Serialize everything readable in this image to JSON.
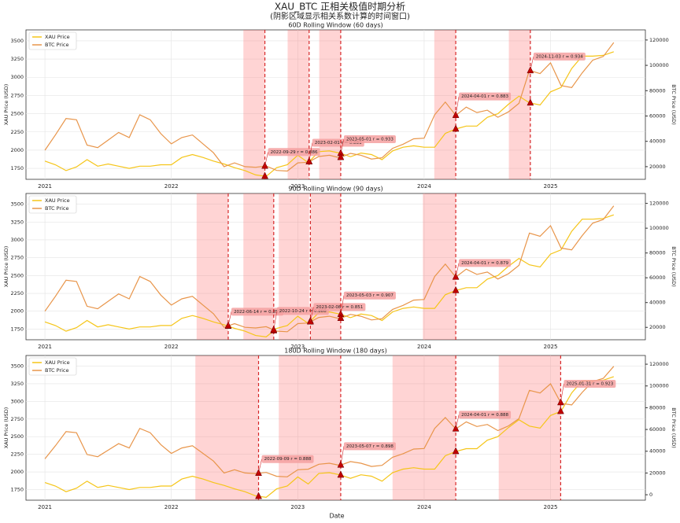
{
  "chart_data": {
    "type": "line",
    "title": "XAU_BTC 正相关极值时期分析",
    "subtitle": "(阴影区域显示相关系数计算的时间窗口)",
    "xlabel": "Date",
    "ylabel": "XAU Price (USD)",
    "y2label": "BTC Price (USD)",
    "xlim": [
      2020.85,
      2025.75
    ],
    "xticks": [
      2021,
      2022,
      2023,
      2024,
      2025
    ],
    "x": [
      2021.0,
      2021.083,
      2021.167,
      2021.25,
      2021.333,
      2021.417,
      2021.5,
      2021.583,
      2021.667,
      2021.75,
      2021.833,
      2021.917,
      2022.0,
      2022.083,
      2022.167,
      2022.25,
      2022.333,
      2022.417,
      2022.5,
      2022.583,
      2022.667,
      2022.75,
      2022.833,
      2022.917,
      2023.0,
      2023.083,
      2023.167,
      2023.25,
      2023.333,
      2023.417,
      2023.5,
      2023.583,
      2023.667,
      2023.75,
      2023.833,
      2023.917,
      2024.0,
      2024.083,
      2024.167,
      2024.25,
      2024.333,
      2024.417,
      2024.5,
      2024.583,
      2024.667,
      2024.75,
      2024.833,
      2024.917,
      2025.0,
      2025.083,
      2025.167,
      2025.25,
      2025.333,
      2025.417,
      2025.5
    ],
    "series": [
      {
        "name": "XAU Price",
        "color": "#f5c518",
        "axis": "y",
        "values": [
          1850,
          1800,
          1720,
          1770,
          1870,
          1780,
          1810,
          1780,
          1750,
          1780,
          1780,
          1800,
          1800,
          1900,
          1940,
          1900,
          1850,
          1810,
          1760,
          1720,
          1660,
          1640,
          1760,
          1800,
          1930,
          1830,
          1980,
          1990,
          1960,
          1910,
          1960,
          1940,
          1870,
          1990,
          2040,
          2060,
          2040,
          2040,
          2230,
          2290,
          2330,
          2330,
          2450,
          2500,
          2630,
          2740,
          2650,
          2620,
          2800,
          2860,
          3120,
          3290,
          3290,
          3300,
          3350
        ]
      },
      {
        "name": "BTC Price",
        "color": "#e8954a",
        "axis": "y2",
        "values": [
          33000,
          45000,
          58000,
          57000,
          37000,
          35000,
          41000,
          47000,
          43000,
          61000,
          57000,
          46000,
          38000,
          43000,
          45000,
          38000,
          31000,
          20000,
          23000,
          20000,
          19500,
          20500,
          17000,
          16500,
          23000,
          23500,
          28000,
          29000,
          27000,
          30500,
          29000,
          26000,
          27000,
          34500,
          37700,
          42000,
          42500,
          61000,
          71000,
          60500,
          67000,
          62700,
          64600,
          59000,
          63300,
          70000,
          96000,
          93500,
          102000,
          84000,
          82500,
          94000,
          104000,
          107000,
          118000
        ]
      }
    ],
    "panels": [
      {
        "title": "60D Rolling Window (60 days)",
        "ylim": [
          1600,
          3650
        ],
        "yticks": [
          1750,
          2000,
          2250,
          2500,
          2750,
          3000,
          3250,
          3500
        ],
        "y2lim": [
          10000,
          128000
        ],
        "y2ticks": [
          20000,
          40000,
          60000,
          80000,
          100000,
          120000
        ],
        "regions": [
          [
            2022.57,
            2022.74
          ],
          [
            2022.92,
            2023.09
          ],
          [
            2023.17,
            2023.34
          ],
          [
            2024.08,
            2024.25
          ],
          [
            2024.67,
            2024.84
          ]
        ],
        "annotations": [
          {
            "x": 2022.74,
            "label": "2022-09-29 r = 0.886"
          },
          {
            "x": 2023.09,
            "label": "2023-02-01 r = 0.881"
          },
          {
            "x": 2023.34,
            "label": "2023-05-01 r = 0.933"
          },
          {
            "x": 2024.25,
            "label": "2024-04-01 r = 0.883"
          },
          {
            "x": 2024.84,
            "label": "2024-11-03 r = 0.934"
          }
        ]
      },
      {
        "title": "90D Rolling Window (90 days)",
        "ylim": [
          1600,
          3650
        ],
        "yticks": [
          1750,
          2000,
          2250,
          2500,
          2750,
          3000,
          3250,
          3500
        ],
        "y2lim": [
          10000,
          128000
        ],
        "y2ticks": [
          20000,
          40000,
          60000,
          80000,
          100000,
          120000
        ],
        "regions": [
          [
            2022.2,
            2022.45
          ],
          [
            2022.57,
            2022.81
          ],
          [
            2022.85,
            2023.09
          ],
          [
            2023.1,
            2023.34
          ],
          [
            2023.99,
            2024.25
          ]
        ],
        "annotations": [
          {
            "x": 2022.45,
            "label": "2022-06-14 r = 0.853"
          },
          {
            "x": 2022.81,
            "label": "2022-10-24 r = 0.888"
          },
          {
            "x": 2023.1,
            "label": "2023-02-08 r = 0.851"
          },
          {
            "x": 2023.34,
            "label": "2023-05-03 r = 0.907"
          },
          {
            "x": 2024.25,
            "label": "2024-04-01 r = 0.879"
          }
        ]
      },
      {
        "title": "180D Rolling Window (180 days)",
        "ylim": [
          1600,
          3650
        ],
        "yticks": [
          1750,
          2000,
          2250,
          2500,
          2750,
          3000,
          3250,
          3500
        ],
        "y2lim": [
          -5000,
          128000
        ],
        "y2ticks": [
          0,
          20000,
          40000,
          60000,
          80000,
          100000,
          120000
        ],
        "regions": [
          [
            2022.19,
            2022.69
          ],
          [
            2022.85,
            2023.34
          ],
          [
            2023.75,
            2024.25
          ],
          [
            2024.59,
            2025.08
          ]
        ],
        "annotations": [
          {
            "x": 2022.69,
            "label": "2022-09-09 r = 0.888"
          },
          {
            "x": 2023.34,
            "label": "2023-05-07 r = 0.898"
          },
          {
            "x": 2024.25,
            "label": "2024-04-01 r = 0.888"
          },
          {
            "x": 2025.08,
            "label": "2025-01-31 r = 0.923"
          }
        ]
      }
    ]
  }
}
